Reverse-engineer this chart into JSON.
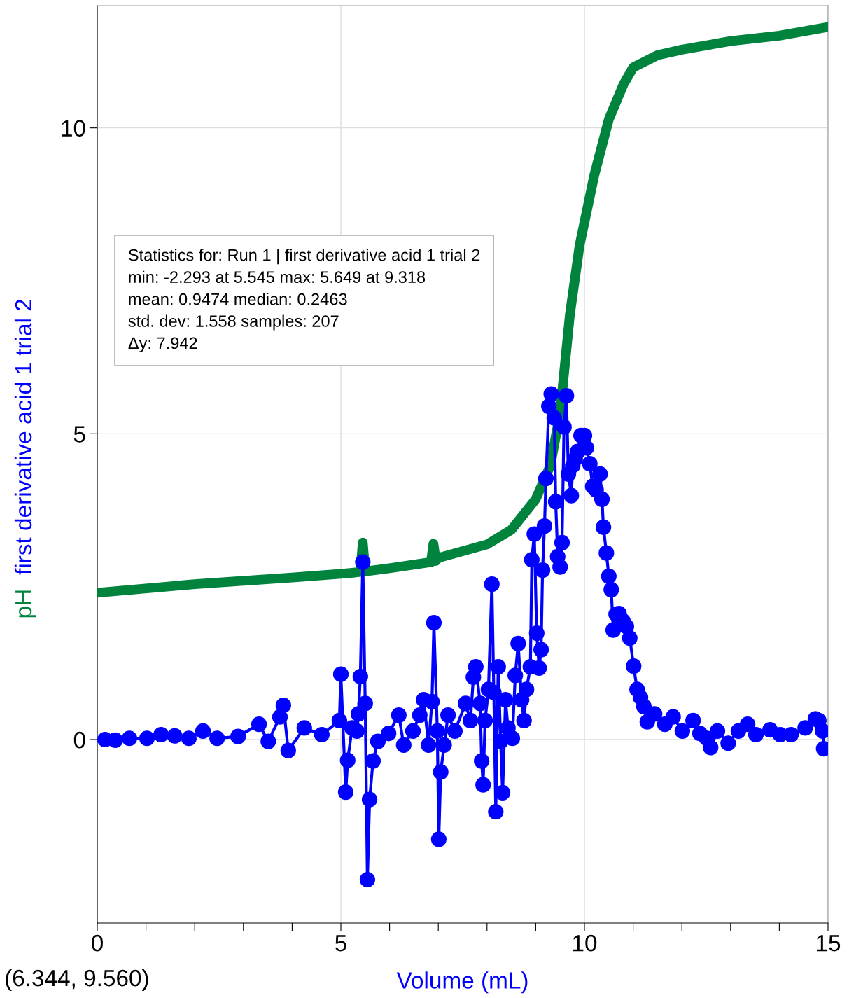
{
  "chart_data": {
    "type": "line",
    "xlabel": "Volume (mL)",
    "xlim": [
      0,
      15
    ],
    "ylim": [
      -3,
      12
    ],
    "xticks": [
      0,
      {
        "value": 1,
        "label": null
      },
      {
        "value": 2,
        "label": null
      },
      {
        "value": 3,
        "label": null
      },
      {
        "value": 4,
        "label": null
      },
      5,
      {
        "value": 6,
        "label": null
      },
      {
        "value": 7,
        "label": null
      },
      {
        "value": 8,
        "label": null
      },
      {
        "value": 9,
        "label": null
      },
      10,
      {
        "value": 11,
        "label": null
      },
      {
        "value": 12,
        "label": null
      },
      {
        "value": 13,
        "label": null
      },
      {
        "value": 14,
        "label": null
      },
      15
    ],
    "yticks": [
      0,
      5,
      10
    ],
    "grid": true,
    "series": [
      {
        "name": "pH",
        "color": "#00843d",
        "marker": "none",
        "x": [
          0,
          2,
          4,
          5,
          5.4,
          5.45,
          5.5,
          6,
          6.85,
          6.9,
          6.95,
          7,
          8,
          8.5,
          9,
          9.3,
          9.5,
          9.7,
          9.9,
          10.2,
          10.5,
          10.8,
          11.0,
          11.5,
          12,
          13,
          14,
          15
        ],
        "values": [
          2.4,
          2.54,
          2.65,
          2.71,
          2.74,
          3.22,
          2.75,
          2.8,
          2.9,
          3.2,
          2.92,
          2.97,
          3.19,
          3.43,
          3.93,
          4.48,
          5.34,
          6.94,
          8.08,
          9.22,
          10.14,
          10.71,
          10.99,
          11.19,
          11.28,
          11.42,
          11.51,
          11.65
        ]
      },
      {
        "name": "first derivative acid 1 trial 2",
        "color": "#0000ff",
        "marker": "circle",
        "x": [
          0.16,
          0.37,
          0.66,
          1.02,
          1.31,
          1.59,
          1.88,
          2.17,
          2.46,
          2.89,
          3.32,
          3.51,
          3.75,
          3.82,
          3.92,
          4.25,
          4.61,
          4.97,
          5.0,
          5.1,
          5.14,
          5.23,
          5.33,
          5.36,
          5.4,
          5.45,
          5.5,
          5.545,
          5.59,
          5.66,
          5.76,
          5.98,
          6.19,
          6.29,
          6.48,
          6.62,
          6.7,
          6.8,
          6.87,
          6.91,
          6.98,
          7.01,
          7.05,
          7.12,
          7.2,
          7.34,
          7.56,
          7.66,
          7.72,
          7.77,
          7.86,
          7.89,
          7.92,
          7.96,
          8.03,
          8.1,
          8.14,
          8.18,
          8.23,
          8.28,
          8.32,
          8.38,
          8.43,
          8.52,
          8.58,
          8.64,
          8.71,
          8.76,
          8.81,
          8.89,
          8.92,
          8.97,
          9.02,
          9.07,
          9.11,
          9.14,
          9.18,
          9.21,
          9.27,
          9.318,
          9.38,
          9.41,
          9.45,
          9.5,
          9.54,
          9.58,
          9.63,
          9.67,
          9.73,
          9.76,
          9.81,
          9.86,
          9.93,
          10.0,
          10.04,
          10.11,
          10.17,
          10.24,
          10.32,
          10.36,
          10.39,
          10.45,
          10.5,
          10.55,
          10.59,
          10.65,
          10.71,
          10.79,
          10.86,
          10.93,
          11.01,
          11.08,
          11.15,
          11.22,
          11.29,
          11.44,
          11.65,
          11.82,
          12.01,
          12.23,
          12.37,
          12.51,
          12.59,
          12.73,
          12.95,
          13.16,
          13.35,
          13.52,
          13.81,
          14.02,
          14.24,
          14.53,
          14.74,
          14.81,
          14.89,
          14.91
        ],
        "values": [
          0.0,
          -0.01,
          0.02,
          0.02,
          0.08,
          0.06,
          0.02,
          0.14,
          0.02,
          0.05,
          0.25,
          -0.03,
          0.37,
          0.56,
          -0.18,
          0.19,
          0.08,
          0.31,
          1.07,
          -0.86,
          -0.34,
          0.19,
          0.14,
          0.42,
          1.03,
          2.9,
          0.59,
          -2.29,
          -0.98,
          -0.35,
          -0.03,
          0.1,
          0.4,
          -0.09,
          0.14,
          0.4,
          0.65,
          -0.09,
          0.62,
          1.91,
          0.14,
          -1.63,
          -0.53,
          -0.09,
          0.4,
          0.14,
          0.59,
          0.31,
          1.02,
          1.19,
          0.59,
          -0.35,
          -0.74,
          0.31,
          0.82,
          2.54,
          0.77,
          -1.18,
          1.19,
          -0.03,
          -0.87,
          0.65,
          0.19,
          0.02,
          1.05,
          1.57,
          0.65,
          0.31,
          0.82,
          1.19,
          2.94,
          3.36,
          1.74,
          1.17,
          1.47,
          2.77,
          3.49,
          4.27,
          5.45,
          5.65,
          5.26,
          3.89,
          2.99,
          2.82,
          3.22,
          5.11,
          5.62,
          4.34,
          3.99,
          4.48,
          4.59,
          4.71,
          4.97,
          4.97,
          4.77,
          4.51,
          4.14,
          4.08,
          4.34,
          3.93,
          3.47,
          3.05,
          2.67,
          2.45,
          1.79,
          2.05,
          2.06,
          1.94,
          1.85,
          1.66,
          1.2,
          0.82,
          0.69,
          0.54,
          0.29,
          0.42,
          0.25,
          0.37,
          0.14,
          0.31,
          0.1,
          0.02,
          -0.13,
          0.14,
          -0.06,
          0.14,
          0.25,
          0.08,
          0.16,
          0.08,
          0.08,
          0.19,
          0.34,
          0.31,
          0.14,
          -0.15
        ]
      }
    ],
    "annotations": [
      "Statistics for: Run 1 | first derivative acid 1 trial 2\nmin: -2.293 at 5.545 max: 5.649 at 9.318\nmean: 0.9474 median: 0.2463\nstd. dev: 1.558 samples: 207\nΔy: 7.942",
      "(6.344, 9.560)"
    ]
  }
}
